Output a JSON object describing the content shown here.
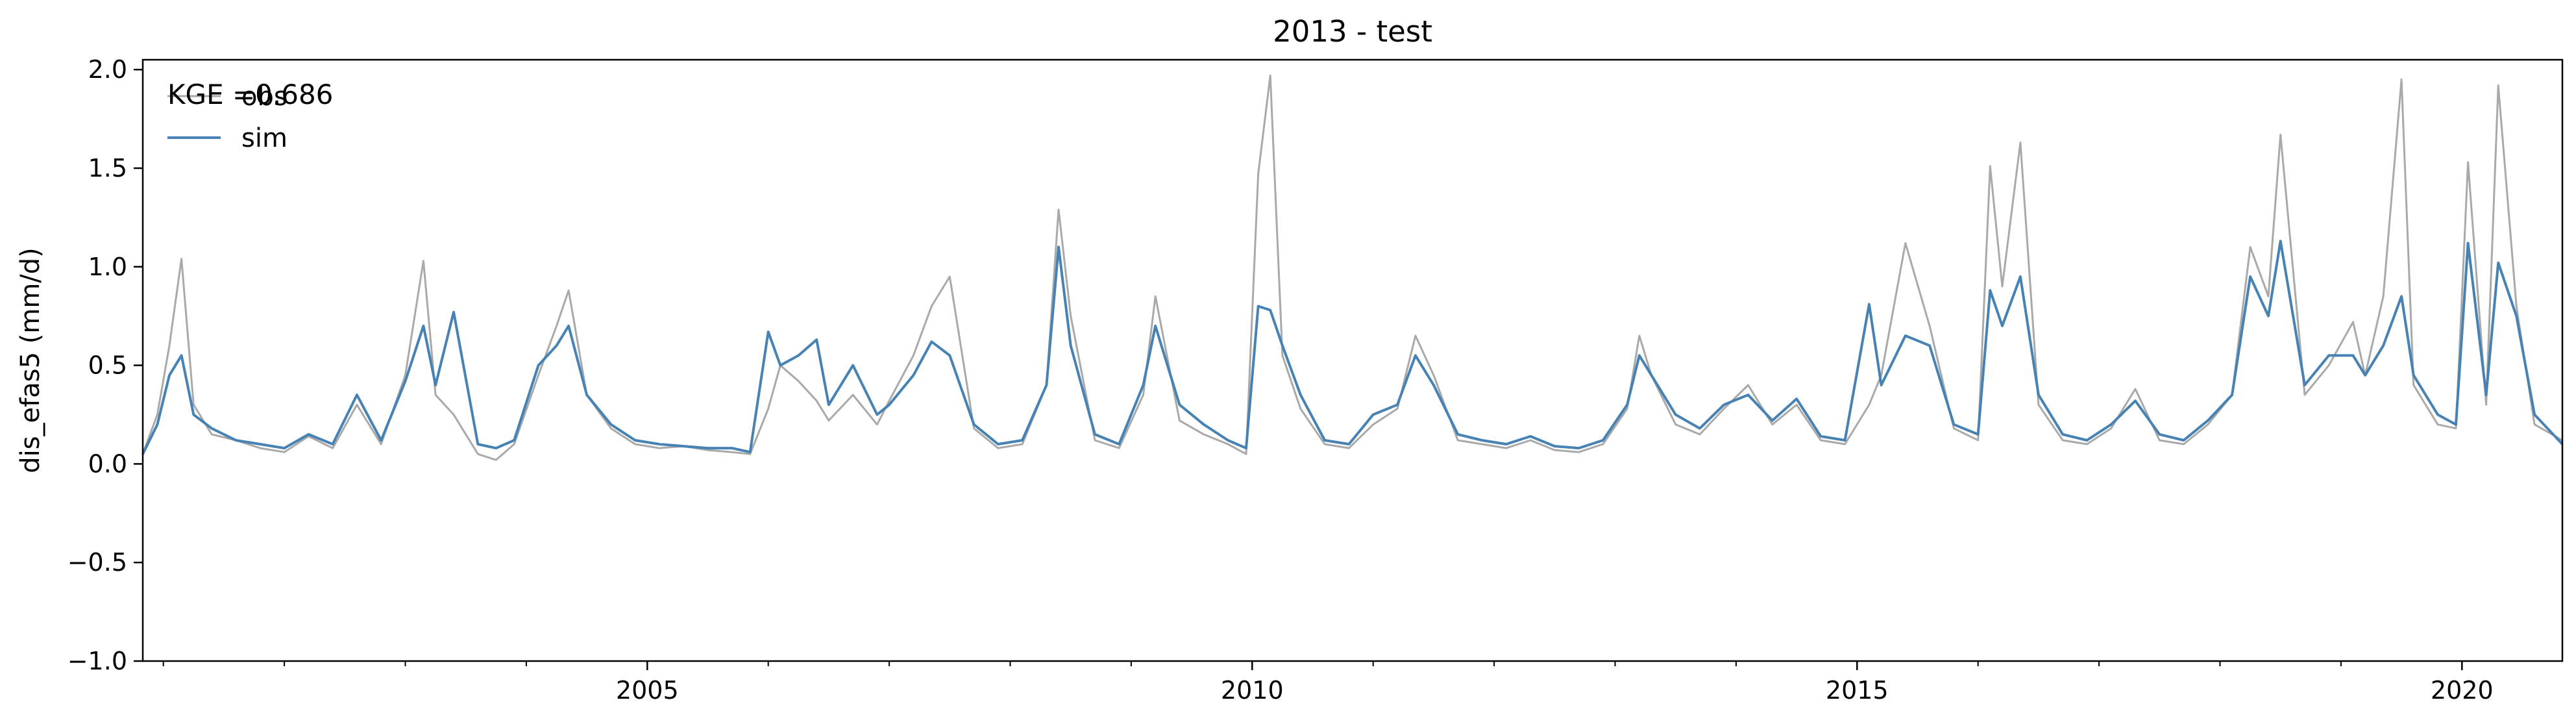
{
  "chart_data": {
    "type": "line",
    "title": "2013 - test",
    "xlabel": "",
    "ylabel": "dis_efas5 (mm/d)",
    "annotation": "KGE =0.686",
    "xlim": [
      2000.83,
      2020.83
    ],
    "ylim": [
      -1.0,
      2.05
    ],
    "grid": false,
    "legend_position": "upper-left",
    "x_ticks": [
      2005,
      2010,
      2015,
      2020
    ],
    "x_tick_labels": [
      "2005",
      "2010",
      "2015",
      "2020"
    ],
    "y_ticks": [
      -1.0,
      -0.5,
      0.0,
      0.5,
      1.0,
      1.5,
      2.0
    ],
    "y_tick_labels": [
      "−1.0",
      "−0.5",
      "0.0",
      "0.5",
      "1.0",
      "1.5",
      "2.0"
    ],
    "series": [
      {
        "name": "obs",
        "color": "#a9a9a9",
        "x": [
          2000.83,
          2000.95,
          2001.05,
          2001.15,
          2001.25,
          2001.4,
          2001.6,
          2001.8,
          2002.0,
          2002.2,
          2002.4,
          2002.6,
          2002.8,
          2003.0,
          2003.15,
          2003.25,
          2003.4,
          2003.6,
          2003.75,
          2003.9,
          2004.1,
          2004.25,
          2004.35,
          2004.5,
          2004.7,
          2004.9,
          2005.1,
          2005.3,
          2005.5,
          2005.7,
          2005.85,
          2006.0,
          2006.1,
          2006.25,
          2006.4,
          2006.5,
          2006.7,
          2006.9,
          2007.0,
          2007.2,
          2007.35,
          2007.5,
          2007.7,
          2007.9,
          2008.1,
          2008.3,
          2008.4,
          2008.5,
          2008.7,
          2008.9,
          2009.1,
          2009.2,
          2009.4,
          2009.6,
          2009.8,
          2009.95,
          2010.05,
          2010.15,
          2010.25,
          2010.4,
          2010.6,
          2010.8,
          2011.0,
          2011.2,
          2011.35,
          2011.5,
          2011.7,
          2011.9,
          2012.1,
          2012.3,
          2012.5,
          2012.7,
          2012.9,
          2013.1,
          2013.2,
          2013.3,
          2013.5,
          2013.7,
          2013.9,
          2014.1,
          2014.3,
          2014.5,
          2014.7,
          2014.9,
          2015.1,
          2015.2,
          2015.4,
          2015.6,
          2015.8,
          2016.0,
          2016.1,
          2016.2,
          2016.35,
          2016.5,
          2016.7,
          2016.9,
          2017.1,
          2017.3,
          2017.5,
          2017.7,
          2017.9,
          2018.1,
          2018.25,
          2018.4,
          2018.5,
          2018.7,
          2018.9,
          2019.1,
          2019.2,
          2019.35,
          2019.5,
          2019.6,
          2019.8,
          2019.95,
          2020.05,
          2020.2,
          2020.3,
          2020.45,
          2020.6,
          2020.83
        ],
        "y": [
          0.05,
          0.25,
          0.6,
          1.04,
          0.3,
          0.15,
          0.12,
          0.08,
          0.06,
          0.14,
          0.08,
          0.3,
          0.1,
          0.45,
          1.03,
          0.35,
          0.25,
          0.05,
          0.02,
          0.1,
          0.45,
          0.7,
          0.88,
          0.35,
          0.18,
          0.1,
          0.08,
          0.09,
          0.07,
          0.06,
          0.05,
          0.28,
          0.5,
          0.42,
          0.32,
          0.22,
          0.35,
          0.2,
          0.32,
          0.55,
          0.8,
          0.95,
          0.18,
          0.08,
          0.1,
          0.4,
          1.29,
          0.75,
          0.12,
          0.08,
          0.35,
          0.85,
          0.22,
          0.15,
          0.1,
          0.05,
          1.47,
          1.97,
          0.55,
          0.28,
          0.1,
          0.08,
          0.2,
          0.28,
          0.65,
          0.45,
          0.12,
          0.1,
          0.08,
          0.12,
          0.07,
          0.06,
          0.1,
          0.28,
          0.65,
          0.45,
          0.2,
          0.15,
          0.28,
          0.4,
          0.2,
          0.3,
          0.12,
          0.1,
          0.3,
          0.45,
          1.12,
          0.7,
          0.18,
          0.12,
          1.51,
          0.9,
          1.63,
          0.3,
          0.12,
          0.1,
          0.18,
          0.38,
          0.12,
          0.1,
          0.2,
          0.35,
          1.1,
          0.85,
          1.67,
          0.35,
          0.5,
          0.72,
          0.45,
          0.85,
          1.95,
          0.4,
          0.2,
          0.18,
          1.53,
          0.3,
          1.92,
          0.8,
          0.2,
          0.12
        ]
      },
      {
        "name": "sim",
        "color": "#4682b4",
        "x": [
          2000.83,
          2000.95,
          2001.05,
          2001.15,
          2001.25,
          2001.4,
          2001.6,
          2001.8,
          2002.0,
          2002.2,
          2002.4,
          2002.6,
          2002.8,
          2003.0,
          2003.15,
          2003.25,
          2003.4,
          2003.6,
          2003.75,
          2003.9,
          2004.1,
          2004.25,
          2004.35,
          2004.5,
          2004.7,
          2004.9,
          2005.1,
          2005.3,
          2005.5,
          2005.7,
          2005.85,
          2006.0,
          2006.1,
          2006.25,
          2006.4,
          2006.5,
          2006.7,
          2006.9,
          2007.0,
          2007.2,
          2007.35,
          2007.5,
          2007.7,
          2007.9,
          2008.1,
          2008.3,
          2008.4,
          2008.5,
          2008.7,
          2008.9,
          2009.1,
          2009.2,
          2009.4,
          2009.6,
          2009.8,
          2009.95,
          2010.05,
          2010.15,
          2010.25,
          2010.4,
          2010.6,
          2010.8,
          2011.0,
          2011.2,
          2011.35,
          2011.5,
          2011.7,
          2011.9,
          2012.1,
          2012.3,
          2012.5,
          2012.7,
          2012.9,
          2013.1,
          2013.2,
          2013.3,
          2013.5,
          2013.7,
          2013.9,
          2014.1,
          2014.3,
          2014.5,
          2014.7,
          2014.9,
          2015.1,
          2015.2,
          2015.4,
          2015.6,
          2015.8,
          2016.0,
          2016.1,
          2016.2,
          2016.35,
          2016.5,
          2016.7,
          2016.9,
          2017.1,
          2017.3,
          2017.5,
          2017.7,
          2017.9,
          2018.1,
          2018.25,
          2018.4,
          2018.5,
          2018.7,
          2018.9,
          2019.1,
          2019.2,
          2019.35,
          2019.5,
          2019.6,
          2019.8,
          2019.95,
          2020.05,
          2020.2,
          2020.3,
          2020.45,
          2020.6,
          2020.83
        ],
        "y": [
          0.05,
          0.2,
          0.45,
          0.55,
          0.25,
          0.18,
          0.12,
          0.1,
          0.08,
          0.15,
          0.1,
          0.35,
          0.12,
          0.42,
          0.7,
          0.4,
          0.77,
          0.1,
          0.08,
          0.12,
          0.5,
          0.6,
          0.7,
          0.35,
          0.2,
          0.12,
          0.1,
          0.09,
          0.08,
          0.08,
          0.06,
          0.67,
          0.5,
          0.55,
          0.63,
          0.3,
          0.5,
          0.25,
          0.3,
          0.45,
          0.62,
          0.55,
          0.2,
          0.1,
          0.12,
          0.4,
          1.1,
          0.6,
          0.15,
          0.1,
          0.4,
          0.7,
          0.3,
          0.2,
          0.12,
          0.08,
          0.8,
          0.78,
          0.6,
          0.35,
          0.12,
          0.1,
          0.25,
          0.3,
          0.55,
          0.4,
          0.15,
          0.12,
          0.1,
          0.14,
          0.09,
          0.08,
          0.12,
          0.3,
          0.55,
          0.45,
          0.25,
          0.18,
          0.3,
          0.35,
          0.22,
          0.33,
          0.14,
          0.12,
          0.81,
          0.4,
          0.65,
          0.6,
          0.2,
          0.15,
          0.88,
          0.7,
          0.95,
          0.35,
          0.15,
          0.12,
          0.2,
          0.32,
          0.15,
          0.12,
          0.22,
          0.35,
          0.95,
          0.75,
          1.13,
          0.4,
          0.55,
          0.55,
          0.45,
          0.6,
          0.85,
          0.45,
          0.25,
          0.2,
          1.12,
          0.35,
          1.02,
          0.75,
          0.25,
          0.1
        ]
      }
    ]
  }
}
